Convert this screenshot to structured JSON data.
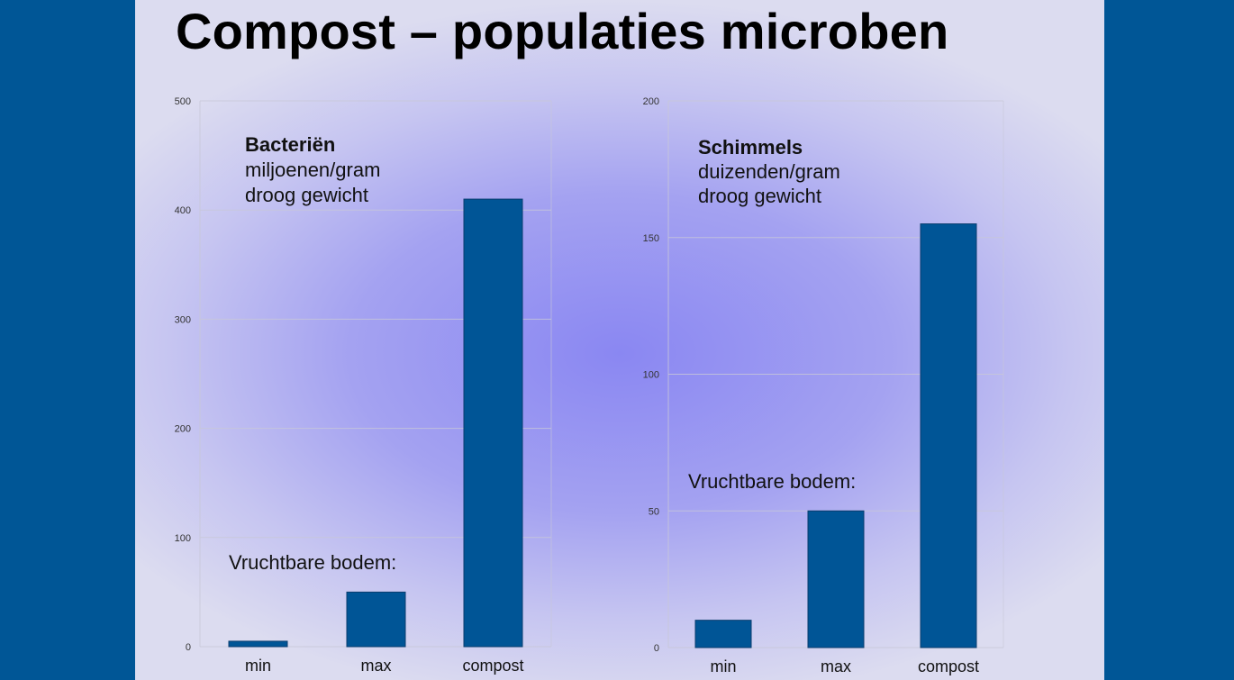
{
  "slide": {
    "title": "Compost – populaties microben"
  },
  "colors": {
    "bar": "#005596",
    "grid": "#c8c8d8",
    "frame_left": "#005696"
  },
  "chart_data": [
    {
      "type": "bar",
      "title": "Bacteriën",
      "subtitle_lines": [
        "miljoenen/gram",
        "droog gewicht"
      ],
      "annotation": "Vruchtbare bodem:",
      "categories": [
        "min",
        "max",
        "compost"
      ],
      "values": [
        5,
        50,
        410
      ],
      "ylim": [
        0,
        500
      ],
      "yticks": [
        0,
        100,
        200,
        300,
        400,
        500
      ],
      "grid": true
    },
    {
      "type": "bar",
      "title": "Schimmels",
      "subtitle_lines": [
        "duizenden/gram",
        "droog gewicht"
      ],
      "annotation": "Vruchtbare bodem:",
      "categories": [
        "min",
        "max",
        "compost"
      ],
      "values": [
        10,
        50,
        155
      ],
      "ylim": [
        0,
        200
      ],
      "yticks": [
        0,
        50,
        100,
        150,
        200
      ],
      "grid": true
    }
  ]
}
